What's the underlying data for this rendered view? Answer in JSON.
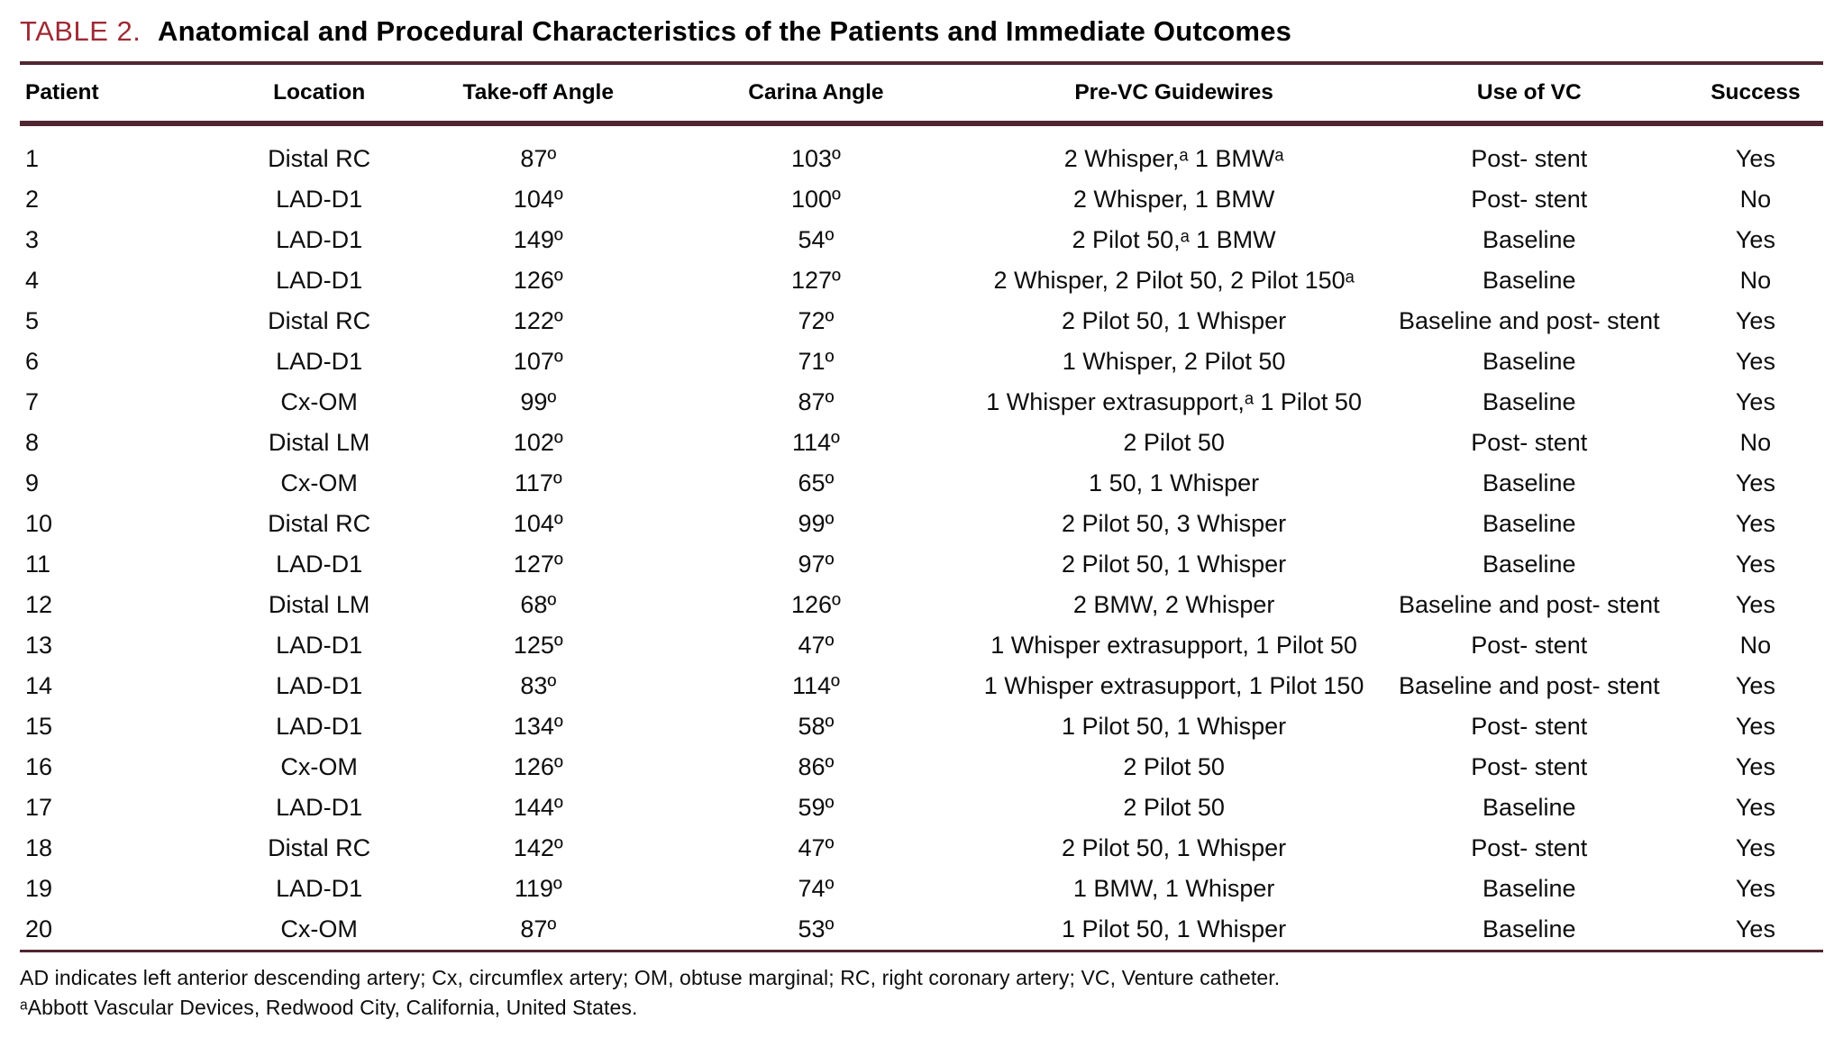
{
  "title": {
    "label": "TABLE 2.",
    "text": "Anatomical and Procedural Characteristics of the Patients and Immediate Outcomes"
  },
  "table": {
    "columns": [
      "Patient",
      "Location",
      "Take-off Angle",
      "Carina Angle",
      "Pre-VC Guidewires",
      "Use of VC",
      "Success"
    ],
    "rows": [
      [
        "1",
        "Distal RC",
        "87º",
        "103º",
        "2 Whisper,ᵃ 1 BMWᵃ",
        "Post- stent",
        "Yes"
      ],
      [
        "2",
        "LAD-D1",
        "104º",
        "100º",
        "2 Whisper, 1 BMW",
        "Post- stent",
        "No"
      ],
      [
        "3",
        "LAD-D1",
        "149º",
        "54º",
        "2 Pilot 50,ᵃ 1 BMW",
        "Baseline",
        "Yes"
      ],
      [
        "4",
        "LAD-D1",
        "126º",
        "127º",
        "2 Whisper, 2 Pilot 50, 2 Pilot 150ᵃ",
        "Baseline",
        "No"
      ],
      [
        "5",
        "Distal RC",
        "122º",
        "72º",
        "2 Pilot 50, 1 Whisper",
        "Baseline and post- stent",
        "Yes"
      ],
      [
        "6",
        "LAD-D1",
        "107º",
        "71º",
        "1 Whisper, 2 Pilot 50",
        "Baseline",
        "Yes"
      ],
      [
        "7",
        "Cx-OM",
        "99º",
        "87º",
        "1 Whisper extrasupport,ᵃ 1 Pilot 50",
        "Baseline",
        "Yes"
      ],
      [
        "8",
        "Distal LM",
        "102º",
        "114º",
        "2 Pilot 50",
        "Post- stent",
        "No"
      ],
      [
        "9",
        "Cx-OM",
        "117º",
        "65º",
        "1 50, 1 Whisper",
        "Baseline",
        "Yes"
      ],
      [
        "10",
        "Distal RC",
        "104º",
        "99º",
        "2 Pilot 50, 3 Whisper",
        "Baseline",
        "Yes"
      ],
      [
        "11",
        "LAD-D1",
        "127º",
        "97º",
        "2 Pilot 50, 1 Whisper",
        "Baseline",
        "Yes"
      ],
      [
        "12",
        "Distal LM",
        "68º",
        "126º",
        "2 BMW, 2 Whisper",
        "Baseline and post- stent",
        "Yes"
      ],
      [
        "13",
        "LAD-D1",
        "125º",
        "47º",
        "1 Whisper extrasupport, 1 Pilot 50",
        "Post- stent",
        "No"
      ],
      [
        "14",
        "LAD-D1",
        "83º",
        "114º",
        "1 Whisper extrasupport, 1 Pilot 150",
        "Baseline and post- stent",
        "Yes"
      ],
      [
        "15",
        "LAD-D1",
        "134º",
        "58º",
        "1 Pilot 50, 1 Whisper",
        "Post- stent",
        "Yes"
      ],
      [
        "16",
        "Cx-OM",
        "126º",
        "86º",
        "2 Pilot 50",
        "Post- stent",
        "Yes"
      ],
      [
        "17",
        "LAD-D1",
        "144º",
        "59º",
        "2 Pilot 50",
        "Baseline",
        "Yes"
      ],
      [
        "18",
        "Distal RC",
        "142º",
        "47º",
        "2 Pilot 50, 1 Whisper",
        "Post- stent",
        "Yes"
      ],
      [
        "19",
        "LAD-D1",
        "119º",
        "74º",
        "1 BMW, 1 Whisper",
        "Baseline",
        "Yes"
      ],
      [
        "20",
        "Cx-OM",
        "87º",
        "53º",
        "1 Pilot 50, 1 Whisper",
        "Baseline",
        "Yes"
      ]
    ]
  },
  "footnotes": [
    "AD indicates left anterior descending artery; Cx, circumflex artery; OM, obtuse marginal; RC, right coronary artery; VC, Venture catheter.",
    "ᵃAbbott Vascular Devices, Redwood City, California, United States."
  ],
  "colors": {
    "accent_red": "#9e2a35",
    "rule_maroon": "#502631"
  }
}
